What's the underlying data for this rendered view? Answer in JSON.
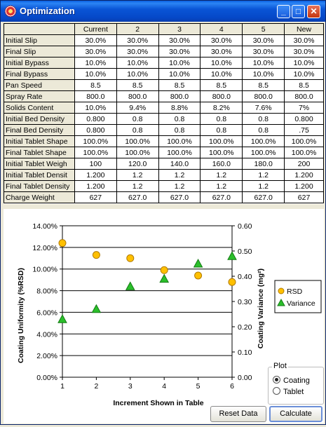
{
  "window": {
    "title": "Optimization"
  },
  "table": {
    "headers": [
      "",
      "Current",
      "2",
      "3",
      "4",
      "5",
      "New"
    ],
    "rows": [
      {
        "label": "Initial Slip",
        "cells": [
          "30.0%",
          "30.0%",
          "30.0%",
          "30.0%",
          "30.0%",
          "30.0%"
        ]
      },
      {
        "label": "Final Slip",
        "cells": [
          "30.0%",
          "30.0%",
          "30.0%",
          "30.0%",
          "30.0%",
          "30.0%"
        ]
      },
      {
        "label": "Initial Bypass",
        "cells": [
          "10.0%",
          "10.0%",
          "10.0%",
          "10.0%",
          "10.0%",
          "10.0%"
        ]
      },
      {
        "label": "Final Bypass",
        "cells": [
          "10.0%",
          "10.0%",
          "10.0%",
          "10.0%",
          "10.0%",
          "10.0%"
        ]
      },
      {
        "label": "Pan Speed",
        "cells": [
          "8.5",
          "8.5",
          "8.5",
          "8.5",
          "8.5",
          "8.5"
        ]
      },
      {
        "label": "Spray Rate",
        "cells": [
          "800.0",
          "800.0",
          "800.0",
          "800.0",
          "800.0",
          "800.0"
        ]
      },
      {
        "label": "Solids Content",
        "cells": [
          "10.0%",
          "9.4%",
          "8.8%",
          "8.2%",
          "7.6%",
          "7%"
        ]
      },
      {
        "label": "Initial Bed Density",
        "cells": [
          "0.800",
          "0.8",
          "0.8",
          "0.8",
          "0.8",
          "0.800"
        ]
      },
      {
        "label": "Final Bed Density",
        "cells": [
          "0.800",
          "0.8",
          "0.8",
          "0.8",
          "0.8",
          ".75"
        ]
      },
      {
        "label": "Initial Tablet Shape",
        "cells": [
          "100.0%",
          "100.0%",
          "100.0%",
          "100.0%",
          "100.0%",
          "100.0%"
        ]
      },
      {
        "label": "Final Tablet Shape",
        "cells": [
          "100.0%",
          "100.0%",
          "100.0%",
          "100.0%",
          "100.0%",
          "100.0%"
        ]
      },
      {
        "label": "Initial Tablet Weigh",
        "cells": [
          "100",
          "120.0",
          "140.0",
          "160.0",
          "180.0",
          "200"
        ]
      },
      {
        "label": "Initial Tablet Densit",
        "cells": [
          "1.200",
          "1.2",
          "1.2",
          "1.2",
          "1.2",
          "1.200"
        ]
      },
      {
        "label": "Final Tablet Density",
        "cells": [
          "1.200",
          "1.2",
          "1.2",
          "1.2",
          "1.2",
          "1.200"
        ]
      },
      {
        "label": "Charge Weight",
        "cells": [
          "627",
          "627.0",
          "627.0",
          "627.0",
          "627.0",
          "627"
        ]
      }
    ]
  },
  "chart_data": {
    "type": "scatter",
    "xlabel": "Increment Shown in Table",
    "ylabel": "Coating Uniformity (%RSD)",
    "y2label": "Coating Variance (mg²)",
    "x_ticks": [
      "1",
      "2",
      "3",
      "4",
      "5",
      "6"
    ],
    "y_ticks": [
      "0.00%",
      "2.00%",
      "4.00%",
      "6.00%",
      "8.00%",
      "10.00%",
      "12.00%",
      "14.00%"
    ],
    "y2_ticks": [
      "0.00",
      "0.10",
      "0.20",
      "0.30",
      "0.40",
      "0.50",
      "0.60"
    ],
    "xlim": [
      1,
      6
    ],
    "ylim": [
      0,
      14
    ],
    "y2lim": [
      0,
      0.6
    ],
    "grid": "horizontal",
    "legend_position": "right",
    "series": [
      {
        "name": "RSD",
        "axis": "left",
        "marker": "circle",
        "color": "#ffc000",
        "x": [
          1,
          2,
          3,
          4,
          5,
          6
        ],
        "y": [
          12.4,
          11.3,
          11.0,
          9.9,
          9.4,
          8.8
        ]
      },
      {
        "name": "Variance",
        "axis": "right",
        "marker": "triangle",
        "color": "#2bbf2b",
        "x": [
          1,
          2,
          3,
          4,
          5,
          6
        ],
        "y": [
          0.23,
          0.27,
          0.36,
          0.39,
          0.45,
          0.48
        ]
      }
    ]
  },
  "controls": {
    "reset_label": "Reset Data",
    "calculate_label": "Calculate",
    "plot_group_label": "Plot",
    "plot_options": [
      "Coating",
      "Tablet"
    ],
    "plot_selected": "Coating"
  }
}
